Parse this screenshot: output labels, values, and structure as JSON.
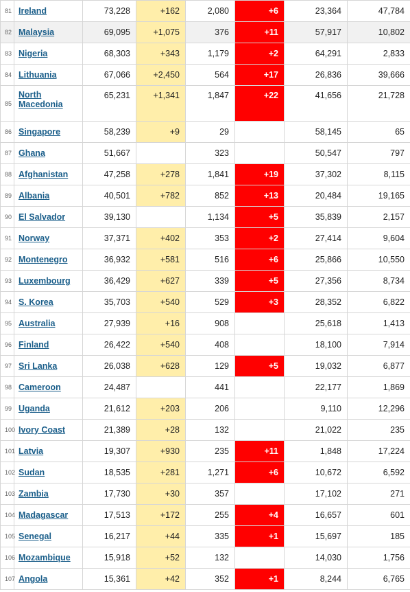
{
  "colors": {
    "new_cases_bg": "#ffeeaa",
    "new_deaths_bg": "#ff0000",
    "link": "#1a5e8a",
    "highlight_row": "#f1f1f1"
  },
  "rows": [
    {
      "rank": "81",
      "country": "Ireland",
      "total_cases": "73,228",
      "new_cases": "+162",
      "total_deaths": "2,080",
      "new_deaths": "+6",
      "recovered": "23,364",
      "active": "47,784"
    },
    {
      "rank": "82",
      "country": "Malaysia",
      "total_cases": "69,095",
      "new_cases": "+1,075",
      "total_deaths": "376",
      "new_deaths": "+11",
      "recovered": "57,917",
      "active": "10,802"
    },
    {
      "rank": "83",
      "country": "Nigeria",
      "total_cases": "68,303",
      "new_cases": "+343",
      "total_deaths": "1,179",
      "new_deaths": "+2",
      "recovered": "64,291",
      "active": "2,833"
    },
    {
      "rank": "84",
      "country": "Lithuania",
      "total_cases": "67,066",
      "new_cases": "+2,450",
      "total_deaths": "564",
      "new_deaths": "+17",
      "recovered": "26,836",
      "active": "39,666"
    },
    {
      "rank": "85",
      "country": "North Macedonia",
      "total_cases": "65,231",
      "new_cases": "+1,341",
      "total_deaths": "1,847",
      "new_deaths": "+22",
      "recovered": "41,656",
      "active": "21,728"
    },
    {
      "rank": "86",
      "country": "Singapore",
      "total_cases": "58,239",
      "new_cases": "+9",
      "total_deaths": "29",
      "new_deaths": "",
      "recovered": "58,145",
      "active": "65"
    },
    {
      "rank": "87",
      "country": "Ghana",
      "total_cases": "51,667",
      "new_cases": "",
      "total_deaths": "323",
      "new_deaths": "",
      "recovered": "50,547",
      "active": "797"
    },
    {
      "rank": "88",
      "country": "Afghanistan",
      "total_cases": "47,258",
      "new_cases": "+278",
      "total_deaths": "1,841",
      "new_deaths": "+19",
      "recovered": "37,302",
      "active": "8,115"
    },
    {
      "rank": "89",
      "country": "Albania",
      "total_cases": "40,501",
      "new_cases": "+782",
      "total_deaths": "852",
      "new_deaths": "+13",
      "recovered": "20,484",
      "active": "19,165"
    },
    {
      "rank": "90",
      "country": "El Salvador",
      "total_cases": "39,130",
      "new_cases": "",
      "total_deaths": "1,134",
      "new_deaths": "+5",
      "recovered": "35,839",
      "active": "2,157"
    },
    {
      "rank": "91",
      "country": "Norway",
      "total_cases": "37,371",
      "new_cases": "+402",
      "total_deaths": "353",
      "new_deaths": "+2",
      "recovered": "27,414",
      "active": "9,604"
    },
    {
      "rank": "92",
      "country": "Montenegro",
      "total_cases": "36,932",
      "new_cases": "+581",
      "total_deaths": "516",
      "new_deaths": "+6",
      "recovered": "25,866",
      "active": "10,550"
    },
    {
      "rank": "93",
      "country": "Luxembourg",
      "total_cases": "36,429",
      "new_cases": "+627",
      "total_deaths": "339",
      "new_deaths": "+5",
      "recovered": "27,356",
      "active": "8,734"
    },
    {
      "rank": "94",
      "country": "S. Korea",
      "total_cases": "35,703",
      "new_cases": "+540",
      "total_deaths": "529",
      "new_deaths": "+3",
      "recovered": "28,352",
      "active": "6,822"
    },
    {
      "rank": "95",
      "country": "Australia",
      "total_cases": "27,939",
      "new_cases": "+16",
      "total_deaths": "908",
      "new_deaths": "",
      "recovered": "25,618",
      "active": "1,413"
    },
    {
      "rank": "96",
      "country": "Finland",
      "total_cases": "26,422",
      "new_cases": "+540",
      "total_deaths": "408",
      "new_deaths": "",
      "recovered": "18,100",
      "active": "7,914"
    },
    {
      "rank": "97",
      "country": "Sri Lanka",
      "total_cases": "26,038",
      "new_cases": "+628",
      "total_deaths": "129",
      "new_deaths": "+5",
      "recovered": "19,032",
      "active": "6,877"
    },
    {
      "rank": "98",
      "country": "Cameroon",
      "total_cases": "24,487",
      "new_cases": "",
      "total_deaths": "441",
      "new_deaths": "",
      "recovered": "22,177",
      "active": "1,869"
    },
    {
      "rank": "99",
      "country": "Uganda",
      "total_cases": "21,612",
      "new_cases": "+203",
      "total_deaths": "206",
      "new_deaths": "",
      "recovered": "9,110",
      "active": "12,296"
    },
    {
      "rank": "100",
      "country": "Ivory Coast",
      "total_cases": "21,389",
      "new_cases": "+28",
      "total_deaths": "132",
      "new_deaths": "",
      "recovered": "21,022",
      "active": "235"
    },
    {
      "rank": "101",
      "country": "Latvia",
      "total_cases": "19,307",
      "new_cases": "+930",
      "total_deaths": "235",
      "new_deaths": "+11",
      "recovered": "1,848",
      "active": "17,224"
    },
    {
      "rank": "102",
      "country": "Sudan",
      "total_cases": "18,535",
      "new_cases": "+281",
      "total_deaths": "1,271",
      "new_deaths": "+6",
      "recovered": "10,672",
      "active": "6,592"
    },
    {
      "rank": "103",
      "country": "Zambia",
      "total_cases": "17,730",
      "new_cases": "+30",
      "total_deaths": "357",
      "new_deaths": "",
      "recovered": "17,102",
      "active": "271"
    },
    {
      "rank": "104",
      "country": "Madagascar",
      "total_cases": "17,513",
      "new_cases": "+172",
      "total_deaths": "255",
      "new_deaths": "+4",
      "recovered": "16,657",
      "active": "601"
    },
    {
      "rank": "105",
      "country": "Senegal",
      "total_cases": "16,217",
      "new_cases": "+44",
      "total_deaths": "335",
      "new_deaths": "+1",
      "recovered": "15,697",
      "active": "185"
    },
    {
      "rank": "106",
      "country": "Mozambique",
      "total_cases": "15,918",
      "new_cases": "+52",
      "total_deaths": "132",
      "new_deaths": "",
      "recovered": "14,030",
      "active": "1,756"
    },
    {
      "rank": "107",
      "country": "Angola",
      "total_cases": "15,361",
      "new_cases": "+42",
      "total_deaths": "352",
      "new_deaths": "+1",
      "recovered": "8,244",
      "active": "6,765"
    }
  ]
}
